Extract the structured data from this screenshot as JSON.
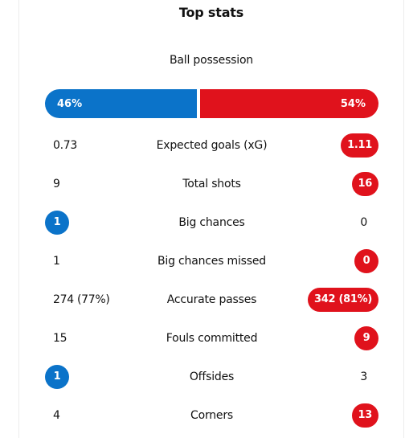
{
  "title": "Top stats",
  "possession": {
    "label": "Ball possession",
    "home": "46%",
    "away": "54%",
    "home_share": 46,
    "away_share": 54
  },
  "colors": {
    "home": "#0b73c9",
    "away": "#e0121c"
  },
  "stats": [
    {
      "label": "Expected goals (xG)",
      "home": "0.73",
      "away": "1.11",
      "leader": "away"
    },
    {
      "label": "Total shots",
      "home": "9",
      "away": "16",
      "leader": "away"
    },
    {
      "label": "Big chances",
      "home": "1",
      "away": "0",
      "leader": "home"
    },
    {
      "label": "Big chances missed",
      "home": "1",
      "away": "0",
      "leader": "away"
    },
    {
      "label": "Accurate passes",
      "home": "274 (77%)",
      "away": "342 (81%)",
      "leader": "away"
    },
    {
      "label": "Fouls committed",
      "home": "15",
      "away": "9",
      "leader": "away"
    },
    {
      "label": "Offsides",
      "home": "1",
      "away": "3",
      "leader": "home"
    },
    {
      "label": "Corners",
      "home": "4",
      "away": "13",
      "leader": "away"
    }
  ]
}
